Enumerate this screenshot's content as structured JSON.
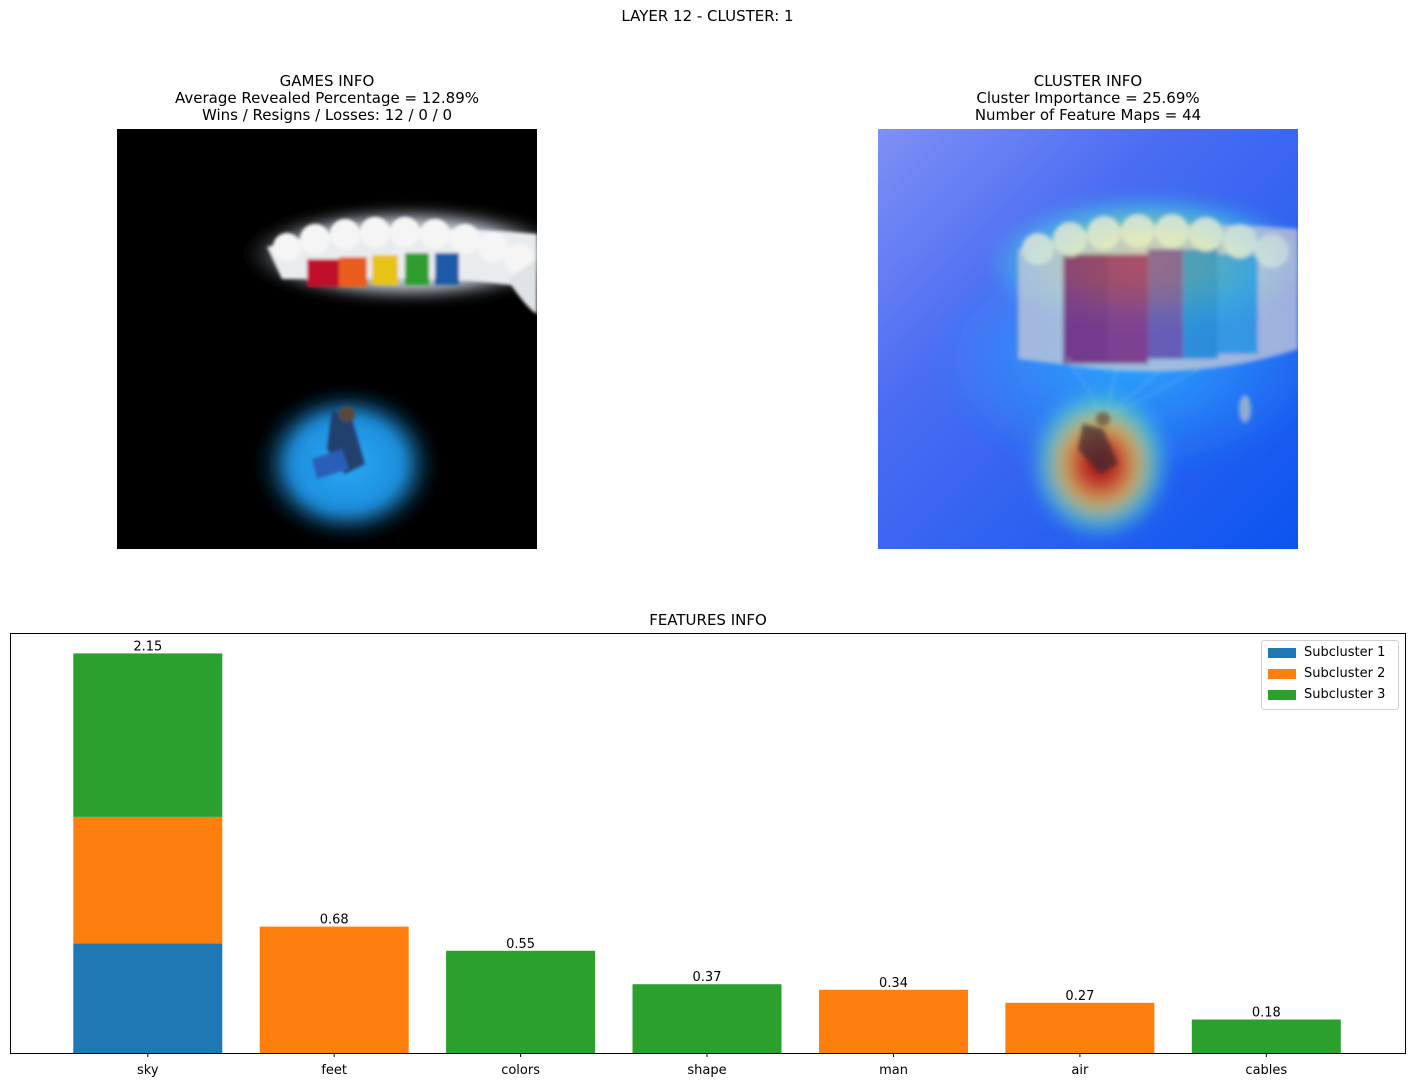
{
  "figure": {
    "suptitle": "LAYER 12 - CLUSTER: 1"
  },
  "games_info": {
    "title": "GAMES INFO",
    "line1": "Average Revealed Percentage = 12.89%",
    "line2": "Wins / Resigns / Losses: 12 / 0 / 0"
  },
  "cluster_info": {
    "title": "CLUSTER INFO",
    "line1": "Cluster Importance = 25.69%",
    "line2": "Number of Feature Maps = 44"
  },
  "chart_data": {
    "type": "bar",
    "title": "FEATURES INFO",
    "categories": [
      "sky",
      "feet",
      "colors",
      "shape",
      "man",
      "air",
      "cables"
    ],
    "series": [
      {
        "name": "Subcluster 1",
        "color": "#1f77b4",
        "values": [
          0.59,
          0,
          0,
          0,
          0,
          0,
          0
        ]
      },
      {
        "name": "Subcluster 2",
        "color": "#ff7f0e",
        "values": [
          0.68,
          0.68,
          0,
          0,
          0.34,
          0.27,
          0
        ]
      },
      {
        "name": "Subcluster 3",
        "color": "#2ca02c",
        "values": [
          0.88,
          0,
          0.55,
          0.37,
          0,
          0,
          0.18
        ]
      }
    ],
    "totals": [
      2.15,
      0.68,
      0.55,
      0.37,
      0.34,
      0.27,
      0.18
    ],
    "total_labels": [
      "2.15",
      "0.68",
      "0.55",
      "0.37",
      "0.34",
      "0.27",
      "0.18"
    ],
    "ylim": [
      0,
      2.26
    ],
    "legend_position": "upper-right",
    "grid": false
  }
}
